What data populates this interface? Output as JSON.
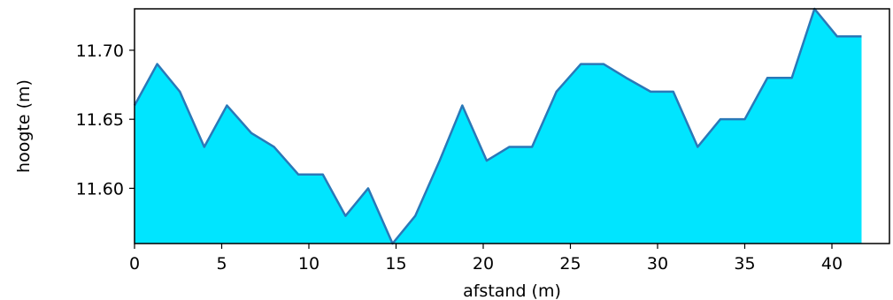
{
  "chart_data": {
    "type": "area",
    "xlabel": "afstand (m)",
    "ylabel": "hoogte (m)",
    "xlim": [
      0,
      43.3
    ],
    "ylim": [
      11.56,
      11.73
    ],
    "xticks": [
      0,
      5,
      10,
      15,
      20,
      25,
      30,
      35,
      40
    ],
    "yticks": [
      11.6,
      11.65,
      11.7
    ],
    "ytick_labels": [
      "11.60",
      "11.65",
      "11.70"
    ],
    "grid": false,
    "fill_color": "#00e5ff",
    "line_color": "#2a78b8",
    "x": [
      0,
      1.3,
      2.6,
      4.0,
      5.3,
      6.7,
      8.0,
      9.4,
      10.8,
      12.1,
      13.4,
      14.8,
      16.1,
      17.5,
      18.8,
      20.2,
      21.5,
      22.8,
      24.2,
      25.6,
      26.9,
      28.2,
      29.6,
      30.9,
      32.3,
      33.6,
      35.0,
      36.3,
      37.7,
      39.0,
      40.3,
      41.7
    ],
    "y": [
      11.66,
      11.69,
      11.67,
      11.63,
      11.66,
      11.64,
      11.63,
      11.61,
      11.61,
      11.58,
      11.6,
      11.56,
      11.58,
      11.62,
      11.66,
      11.62,
      11.63,
      11.63,
      11.67,
      11.69,
      11.69,
      11.68,
      11.67,
      11.67,
      11.63,
      11.65,
      11.65,
      11.68,
      11.68,
      11.73,
      11.71,
      11.71
    ]
  }
}
